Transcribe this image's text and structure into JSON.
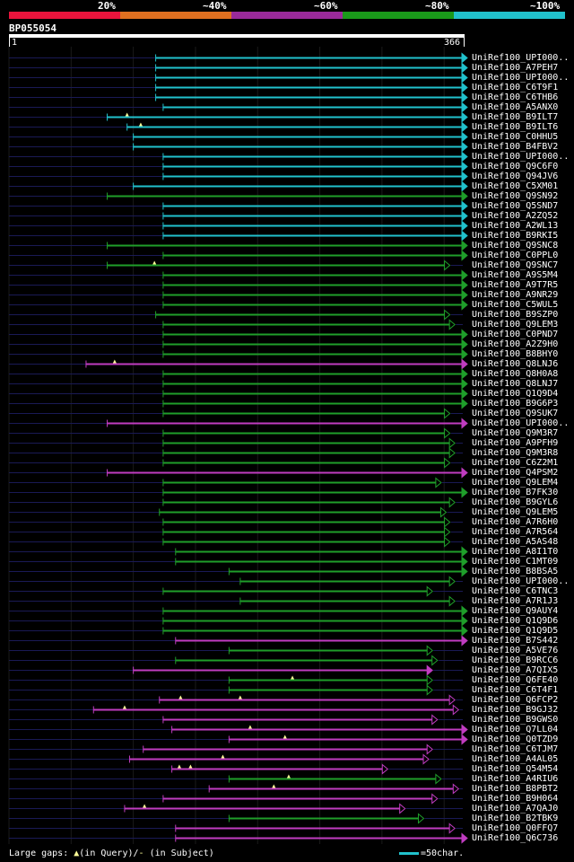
{
  "scale": {
    "segments": [
      {
        "label": "20%",
        "color": "#e8143c"
      },
      {
        "label": "~40%",
        "color": "#e07020"
      },
      {
        "label": "~60%",
        "color": "#9a2a9a"
      },
      {
        "label": "~80%",
        "color": "#1a9a1a"
      },
      {
        "label": "~100%",
        "color": "#21c1cc"
      }
    ]
  },
  "query": {
    "id": "BP055054",
    "start": "1",
    "end": "366",
    "length": 366
  },
  "colors": {
    "cyan": "#21c1cc",
    "green": "#1f9e2a",
    "magenta": "#c03cc0",
    "query_line": "#1a1a55",
    "gap_marker": "#ffff99"
  },
  "hits": [
    {
      "label": "UniRef100_UPI000..",
      "start": 119,
      "end": 366,
      "color": "cyan",
      "end_style": "arrow",
      "gaps": []
    },
    {
      "label": "UniRef100_A7PEH7",
      "start": 119,
      "end": 366,
      "color": "cyan",
      "end_style": "arrow",
      "gaps": []
    },
    {
      "label": "UniRef100_UPI000..",
      "start": 119,
      "end": 366,
      "color": "cyan",
      "end_style": "arrow",
      "gaps": []
    },
    {
      "label": "UniRef100_C6T9F1",
      "start": 119,
      "end": 366,
      "color": "cyan",
      "end_style": "arrow",
      "gaps": []
    },
    {
      "label": "UniRef100_C6THB6",
      "start": 119,
      "end": 366,
      "color": "cyan",
      "end_style": "arrow",
      "gaps": []
    },
    {
      "label": "UniRef100_A5ANX0",
      "start": 125,
      "end": 366,
      "color": "cyan",
      "end_style": "arrow",
      "gaps": []
    },
    {
      "label": "UniRef100_B9ILT7",
      "start": 80,
      "end": 366,
      "color": "cyan",
      "end_style": "arrow",
      "gaps": [
        96
      ]
    },
    {
      "label": "UniRef100_B9ILT6",
      "start": 96,
      "end": 366,
      "color": "cyan",
      "end_style": "arrow",
      "gaps": [
        107
      ]
    },
    {
      "label": "UniRef100_C0HHU5",
      "start": 101,
      "end": 366,
      "color": "cyan",
      "end_style": "arrow",
      "gaps": []
    },
    {
      "label": "UniRef100_B4FBV2",
      "start": 101,
      "end": 366,
      "color": "cyan",
      "end_style": "arrow",
      "gaps": []
    },
    {
      "label": "UniRef100_UPI000..",
      "start": 125,
      "end": 366,
      "color": "cyan",
      "end_style": "arrow",
      "gaps": []
    },
    {
      "label": "UniRef100_Q9C6F0",
      "start": 125,
      "end": 366,
      "color": "cyan",
      "end_style": "arrow",
      "gaps": []
    },
    {
      "label": "UniRef100_Q94JV6",
      "start": 125,
      "end": 366,
      "color": "cyan",
      "end_style": "arrow",
      "gaps": []
    },
    {
      "label": "UniRef100_C5XM01",
      "start": 101,
      "end": 366,
      "color": "cyan",
      "end_style": "arrow",
      "gaps": []
    },
    {
      "label": "UniRef100_Q9SN92",
      "start": 80,
      "end": 366,
      "color": "green",
      "end_style": "arrow",
      "gaps": []
    },
    {
      "label": "UniRef100_Q5SND7",
      "start": 125,
      "end": 366,
      "color": "cyan",
      "end_style": "arrow",
      "gaps": []
    },
    {
      "label": "UniRef100_A2ZQ52",
      "start": 125,
      "end": 366,
      "color": "cyan",
      "end_style": "arrow",
      "gaps": []
    },
    {
      "label": "UniRef100_A2WL13",
      "start": 125,
      "end": 366,
      "color": "cyan",
      "end_style": "arrow",
      "gaps": []
    },
    {
      "label": "UniRef100_B9RKI5",
      "start": 125,
      "end": 366,
      "color": "cyan",
      "end_style": "arrow",
      "gaps": []
    },
    {
      "label": "UniRef100_Q9SNC8",
      "start": 80,
      "end": 366,
      "color": "green",
      "end_style": "arrow",
      "gaps": []
    },
    {
      "label": "UniRef100_C0PPL0",
      "start": 125,
      "end": 366,
      "color": "green",
      "end_style": "arrow",
      "gaps": []
    },
    {
      "label": "UniRef100_Q9SNC7",
      "start": 80,
      "end": 352,
      "color": "green",
      "end_style": "open",
      "gaps": [
        118
      ]
    },
    {
      "label": "UniRef100_A9S5M4",
      "start": 125,
      "end": 366,
      "color": "green",
      "end_style": "arrow",
      "gaps": []
    },
    {
      "label": "UniRef100_A9T7R5",
      "start": 125,
      "end": 366,
      "color": "green",
      "end_style": "arrow",
      "gaps": []
    },
    {
      "label": "UniRef100_A9NR29",
      "start": 125,
      "end": 366,
      "color": "green",
      "end_style": "arrow",
      "gaps": []
    },
    {
      "label": "UniRef100_C5WUL5",
      "start": 125,
      "end": 366,
      "color": "green",
      "end_style": "arrow",
      "gaps": []
    },
    {
      "label": "UniRef100_B9SZP0",
      "start": 119,
      "end": 352,
      "color": "green",
      "end_style": "open",
      "gaps": []
    },
    {
      "label": "UniRef100_Q9LEM3",
      "start": 125,
      "end": 356,
      "color": "green",
      "end_style": "open",
      "gaps": []
    },
    {
      "label": "UniRef100_C0PND7",
      "start": 125,
      "end": 366,
      "color": "green",
      "end_style": "arrow",
      "gaps": []
    },
    {
      "label": "UniRef100_A2Z9H0",
      "start": 125,
      "end": 366,
      "color": "green",
      "end_style": "arrow",
      "gaps": []
    },
    {
      "label": "UniRef100_B8BHY0",
      "start": 125,
      "end": 366,
      "color": "green",
      "end_style": "arrow",
      "gaps": []
    },
    {
      "label": "UniRef100_Q8LNJ6",
      "start": 63,
      "end": 366,
      "color": "magenta",
      "end_style": "arrow",
      "gaps": [
        86
      ]
    },
    {
      "label": "UniRef100_Q8H0A8",
      "start": 125,
      "end": 366,
      "color": "green",
      "end_style": "arrow",
      "gaps": []
    },
    {
      "label": "UniRef100_Q8LNJ7",
      "start": 125,
      "end": 366,
      "color": "green",
      "end_style": "arrow",
      "gaps": []
    },
    {
      "label": "UniRef100_Q1Q9D4",
      "start": 125,
      "end": 366,
      "color": "green",
      "end_style": "arrow",
      "gaps": []
    },
    {
      "label": "UniRef100_B9G6P3",
      "start": 125,
      "end": 366,
      "color": "green",
      "end_style": "arrow",
      "gaps": []
    },
    {
      "label": "UniRef100_Q9SUK7",
      "start": 125,
      "end": 352,
      "color": "green",
      "end_style": "open",
      "gaps": []
    },
    {
      "label": "UniRef100_UPI000..",
      "start": 80,
      "end": 366,
      "color": "magenta",
      "end_style": "arrow",
      "gaps": []
    },
    {
      "label": "UniRef100_Q9M3R7",
      "start": 125,
      "end": 352,
      "color": "green",
      "end_style": "open",
      "gaps": []
    },
    {
      "label": "UniRef100_A9PFH9",
      "start": 125,
      "end": 356,
      "color": "green",
      "end_style": "open",
      "gaps": []
    },
    {
      "label": "UniRef100_Q9M3R8",
      "start": 125,
      "end": 356,
      "color": "green",
      "end_style": "open",
      "gaps": []
    },
    {
      "label": "UniRef100_C6Z2M1",
      "start": 125,
      "end": 352,
      "color": "green",
      "end_style": "open",
      "gaps": []
    },
    {
      "label": "UniRef100_Q4PSM2",
      "start": 80,
      "end": 366,
      "color": "magenta",
      "end_style": "arrow",
      "gaps": []
    },
    {
      "label": "UniRef100_Q9LEM4",
      "start": 125,
      "end": 345,
      "color": "green",
      "end_style": "open",
      "gaps": []
    },
    {
      "label": "UniRef100_B7FK30",
      "start": 125,
      "end": 366,
      "color": "green",
      "end_style": "arrow",
      "gaps": []
    },
    {
      "label": "UniRef100_B9GYL6",
      "start": 125,
      "end": 356,
      "color": "green",
      "end_style": "open",
      "gaps": []
    },
    {
      "label": "UniRef100_Q9LEM5",
      "start": 122,
      "end": 349,
      "color": "green",
      "end_style": "open",
      "gaps": []
    },
    {
      "label": "UniRef100_A7R6H0",
      "start": 125,
      "end": 352,
      "color": "green",
      "end_style": "open",
      "gaps": []
    },
    {
      "label": "UniRef100_A7R564",
      "start": 125,
      "end": 352,
      "color": "green",
      "end_style": "open",
      "gaps": []
    },
    {
      "label": "UniRef100_A5AS48",
      "start": 125,
      "end": 352,
      "color": "green",
      "end_style": "open",
      "gaps": []
    },
    {
      "label": "UniRef100_A8I1T0",
      "start": 135,
      "end": 366,
      "color": "green",
      "end_style": "arrow",
      "gaps": []
    },
    {
      "label": "UniRef100_C1MT09",
      "start": 135,
      "end": 366,
      "color": "green",
      "end_style": "arrow",
      "gaps": []
    },
    {
      "label": "UniRef100_B8BSA5",
      "start": 178,
      "end": 366,
      "color": "green",
      "end_style": "arrow",
      "gaps": []
    },
    {
      "label": "UniRef100_UPI000..",
      "start": 187,
      "end": 356,
      "color": "green",
      "end_style": "open",
      "gaps": []
    },
    {
      "label": "UniRef100_C6TNC3",
      "start": 125,
      "end": 338,
      "color": "green",
      "end_style": "open",
      "gaps": []
    },
    {
      "label": "UniRef100_A7R1J3",
      "start": 187,
      "end": 356,
      "color": "green",
      "end_style": "open",
      "gaps": []
    },
    {
      "label": "UniRef100_Q9AUY4",
      "start": 125,
      "end": 366,
      "color": "green",
      "end_style": "arrow",
      "gaps": []
    },
    {
      "label": "UniRef100_Q1Q9D6",
      "start": 125,
      "end": 366,
      "color": "green",
      "end_style": "arrow",
      "gaps": []
    },
    {
      "label": "UniRef100_Q1Q9D5",
      "start": 125,
      "end": 366,
      "color": "green",
      "end_style": "arrow",
      "gaps": []
    },
    {
      "label": "UniRef100_B7S442",
      "start": 135,
      "end": 366,
      "color": "magenta",
      "end_style": "arrow",
      "gaps": []
    },
    {
      "label": "UniRef100_A5VE76",
      "start": 178,
      "end": 338,
      "color": "green",
      "end_style": "open",
      "gaps": []
    },
    {
      "label": "UniRef100_B9RCC6",
      "start": 135,
      "end": 342,
      "color": "green",
      "end_style": "open",
      "gaps": []
    },
    {
      "label": "UniRef100_A7QIX5",
      "start": 101,
      "end": 338,
      "color": "magenta",
      "end_style": "arrow",
      "gaps": []
    },
    {
      "label": "UniRef100_Q6FE40",
      "start": 178,
      "end": 338,
      "color": "green",
      "end_style": "open",
      "gaps": [
        229
      ]
    },
    {
      "label": "UniRef100_C6T4F1",
      "start": 178,
      "end": 338,
      "color": "green",
      "end_style": "open",
      "gaps": []
    },
    {
      "label": "UniRef100_Q6FCP2",
      "start": 122,
      "end": 356,
      "color": "magenta",
      "end_style": "open",
      "gaps": [
        139,
        187
      ]
    },
    {
      "label": "UniRef100_B9GJ32",
      "start": 69,
      "end": 359,
      "color": "magenta",
      "end_style": "open",
      "gaps": [
        94
      ]
    },
    {
      "label": "UniRef100_B9GWS0",
      "start": 125,
      "end": 342,
      "color": "magenta",
      "end_style": "open",
      "gaps": []
    },
    {
      "label": "UniRef100_Q7LL04",
      "start": 132,
      "end": 366,
      "color": "magenta",
      "end_style": "arrow",
      "gaps": [
        195
      ]
    },
    {
      "label": "UniRef100_Q0TZD9",
      "start": 178,
      "end": 366,
      "color": "magenta",
      "end_style": "arrow",
      "gaps": [
        223
      ]
    },
    {
      "label": "UniRef100_C6TJM7",
      "start": 109,
      "end": 338,
      "color": "magenta",
      "end_style": "open",
      "gaps": []
    },
    {
      "label": "UniRef100_A4AL05",
      "start": 98,
      "end": 335,
      "color": "magenta",
      "end_style": "open",
      "gaps": [
        173
      ]
    },
    {
      "label": "UniRef100_Q54M54",
      "start": 132,
      "end": 302,
      "color": "magenta",
      "end_style": "open",
      "gaps": [
        138,
        147
      ]
    },
    {
      "label": "UniRef100_A4RIU6",
      "start": 178,
      "end": 345,
      "color": "green",
      "end_style": "open",
      "gaps": [
        226
      ]
    },
    {
      "label": "UniRef100_B8PBT2",
      "start": 162,
      "end": 359,
      "color": "magenta",
      "end_style": "open",
      "gaps": [
        214
      ]
    },
    {
      "label": "UniRef100_B9H064",
      "start": 125,
      "end": 342,
      "color": "magenta",
      "end_style": "open",
      "gaps": []
    },
    {
      "label": "UniRef100_A7QAJ0",
      "start": 94,
      "end": 316,
      "color": "magenta",
      "end_style": "open",
      "gaps": [
        110
      ]
    },
    {
      "label": "UniRef100_B2TBK9",
      "start": 178,
      "end": 331,
      "color": "green",
      "end_style": "open",
      "gaps": []
    },
    {
      "label": "UniRef100_Q0FFQ7",
      "start": 135,
      "end": 356,
      "color": "magenta",
      "end_style": "open",
      "gaps": []
    },
    {
      "label": "UniRef100_Q6C736",
      "start": 135,
      "end": 366,
      "color": "magenta",
      "end_style": "arrow",
      "gaps": []
    }
  ],
  "legend": {
    "large_gaps_text": "Large gaps: ",
    "gap_in_query_text": "(in Query)/",
    "gap_in_subject_mark": "-",
    "gap_in_subject_text": " (in Subject)",
    "scale_text": "=50char."
  }
}
